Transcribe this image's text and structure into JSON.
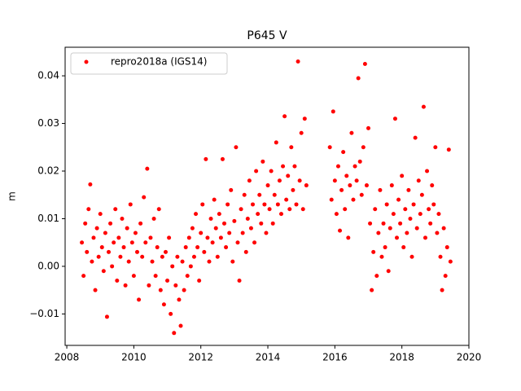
{
  "chart_data": {
    "type": "scatter",
    "title": "P645 V",
    "y_label": "m",
    "xlim": [
      2007.95,
      2020
    ],
    "xticks": [
      2008,
      2010,
      2012,
      2014,
      2016,
      2018,
      2020
    ],
    "ylim": [
      -0.0166,
      0.046
    ],
    "yticks": [
      {
        "value": -0.01,
        "label": "−0.01"
      },
      {
        "value": 0,
        "label": "0.00"
      },
      0.01,
      0.02,
      0.03,
      0.04
    ],
    "legend": "upper left",
    "series": [
      {
        "name": "repro2018a (IGS14)",
        "color": "#ff0000",
        "x": [
          2008.45,
          2008.5,
          2008.55,
          2008.6,
          2008.65,
          2008.7,
          2008.75,
          2008.8,
          2008.85,
          2008.9,
          2008.95,
          2009.0,
          2009.05,
          2009.1,
          2009.15,
          2009.2,
          2009.25,
          2009.3,
          2009.35,
          2009.4,
          2009.45,
          2009.5,
          2009.55,
          2009.6,
          2009.65,
          2009.7,
          2009.75,
          2009.8,
          2009.85,
          2009.9,
          2009.95,
          2010.0,
          2010.05,
          2010.1,
          2010.15,
          2010.2,
          2010.25,
          2010.3,
          2010.35,
          2010.4,
          2010.45,
          2010.5,
          2010.55,
          2010.6,
          2010.65,
          2010.7,
          2010.75,
          2010.8,
          2010.85,
          2010.9,
          2010.95,
          2011.0,
          2011.05,
          2011.1,
          2011.15,
          2011.2,
          2011.25,
          2011.3,
          2011.35,
          2011.4,
          2011.45,
          2011.5,
          2011.55,
          2011.6,
          2011.65,
          2011.7,
          2011.75,
          2011.8,
          2011.85,
          2011.9,
          2011.95,
          2012.0,
          2012.05,
          2012.1,
          2012.15,
          2012.2,
          2012.25,
          2012.3,
          2012.35,
          2012.4,
          2012.45,
          2012.5,
          2012.55,
          2012.6,
          2012.65,
          2012.7,
          2012.75,
          2012.8,
          2012.85,
          2012.9,
          2012.95,
          2013.0,
          2013.05,
          2013.1,
          2013.15,
          2013.2,
          2013.25,
          2013.3,
          2013.35,
          2013.4,
          2013.45,
          2013.5,
          2013.55,
          2013.6,
          2013.65,
          2013.7,
          2013.75,
          2013.8,
          2013.85,
          2013.9,
          2013.95,
          2014.0,
          2014.05,
          2014.1,
          2014.15,
          2014.2,
          2014.25,
          2014.3,
          2014.35,
          2014.4,
          2014.45,
          2014.5,
          2014.55,
          2014.6,
          2014.65,
          2014.7,
          2014.75,
          2014.8,
          2014.85,
          2014.9,
          2014.95,
          2015.0,
          2015.05,
          2015.1,
          2015.15,
          2015.85,
          2015.9,
          2015.95,
          2016.0,
          2016.05,
          2016.1,
          2016.15,
          2016.2,
          2016.25,
          2016.3,
          2016.35,
          2016.4,
          2016.45,
          2016.5,
          2016.55,
          2016.6,
          2016.65,
          2016.7,
          2016.75,
          2016.8,
          2016.85,
          2016.9,
          2016.95,
          2017.0,
          2017.05,
          2017.1,
          2017.15,
          2017.2,
          2017.25,
          2017.3,
          2017.35,
          2017.4,
          2017.45,
          2017.5,
          2017.55,
          2017.6,
          2017.65,
          2017.7,
          2017.75,
          2017.8,
          2017.85,
          2017.9,
          2017.95,
          2018.0,
          2018.05,
          2018.1,
          2018.15,
          2018.2,
          2018.25,
          2018.3,
          2018.35,
          2018.4,
          2018.45,
          2018.5,
          2018.55,
          2018.6,
          2018.65,
          2018.7,
          2018.75,
          2018.8,
          2018.85,
          2018.9,
          2018.95,
          2019.0,
          2019.05,
          2019.1,
          2019.15,
          2019.2,
          2019.25,
          2019.3,
          2019.35,
          2019.4,
          2019.45
        ],
        "values": [
          0.005,
          -0.002,
          0.009,
          0.003,
          0.012,
          0.0172,
          0.001,
          0.006,
          -0.005,
          0.008,
          0.002,
          0.011,
          0.004,
          -0.001,
          0.007,
          -0.0106,
          0.003,
          0.009,
          0.0,
          0.005,
          0.012,
          -0.003,
          0.006,
          0.002,
          0.01,
          0.004,
          -0.004,
          0.008,
          0.001,
          0.013,
          0.005,
          -0.002,
          0.007,
          0.003,
          -0.007,
          0.009,
          0.002,
          0.0145,
          0.005,
          0.0205,
          -0.004,
          0.006,
          0.001,
          0.01,
          -0.002,
          0.004,
          0.012,
          -0.005,
          0.002,
          -0.008,
          0.003,
          -0.003,
          0.006,
          -0.01,
          0.0,
          -0.014,
          -0.004,
          0.002,
          -0.007,
          -0.0125,
          0.001,
          -0.005,
          0.004,
          -0.002,
          0.006,
          0.0,
          0.008,
          0.002,
          0.011,
          0.004,
          -0.003,
          0.007,
          0.013,
          0.003,
          0.0225,
          0.006,
          0.001,
          0.01,
          0.005,
          0.014,
          0.008,
          0.002,
          0.011,
          0.006,
          0.0225,
          0.009,
          0.004,
          0.013,
          0.007,
          0.016,
          0.001,
          0.0095,
          0.025,
          0.005,
          -0.003,
          0.012,
          0.007,
          0.015,
          0.003,
          0.01,
          0.018,
          0.008,
          0.013,
          0.005,
          0.02,
          0.011,
          0.015,
          0.009,
          0.022,
          0.013,
          0.007,
          0.017,
          0.012,
          0.02,
          0.009,
          0.015,
          0.026,
          0.013,
          0.018,
          0.011,
          0.021,
          0.0315,
          0.014,
          0.019,
          0.012,
          0.025,
          0.016,
          0.021,
          0.013,
          0.043,
          0.018,
          0.028,
          0.012,
          0.031,
          0.017,
          0.025,
          0.014,
          0.0325,
          0.018,
          0.011,
          0.021,
          0.0075,
          0.016,
          0.024,
          0.012,
          0.019,
          0.006,
          0.017,
          0.028,
          0.014,
          0.021,
          0.018,
          0.0395,
          0.022,
          0.015,
          0.025,
          0.0425,
          0.017,
          0.029,
          0.009,
          -0.005,
          0.003,
          0.012,
          -0.002,
          0.007,
          0.016,
          0.002,
          0.009,
          0.004,
          0.013,
          -0.001,
          0.008,
          0.017,
          0.011,
          0.031,
          0.006,
          0.014,
          0.009,
          0.019,
          0.004,
          0.012,
          0.007,
          0.016,
          0.01,
          0.002,
          0.013,
          0.027,
          0.008,
          0.018,
          0.011,
          0.015,
          0.0335,
          0.006,
          0.02,
          0.012,
          0.009,
          0.017,
          0.013,
          0.025,
          0.007,
          0.011,
          0.002,
          -0.005,
          0.008,
          -0.002,
          0.004,
          0.0245,
          0.001
        ]
      }
    ]
  }
}
